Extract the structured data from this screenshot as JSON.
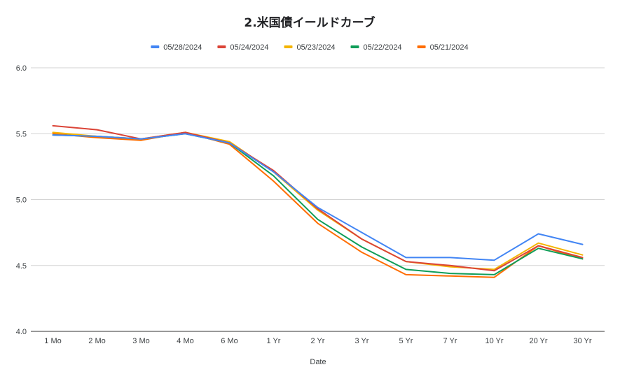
{
  "chart_data": {
    "type": "line",
    "title": "2.米国債イールドカーブ",
    "xlabel": "Date",
    "ylabel": "",
    "ylim": [
      4.0,
      6.0
    ],
    "yticks": [
      "4.0",
      "4.5",
      "5.0",
      "5.5",
      "6.0"
    ],
    "grid": true,
    "legend_position": "top",
    "categories": [
      "1 Mo",
      "2 Mo",
      "3 Mo",
      "4 Mo",
      "6 Mo",
      "1 Yr",
      "2 Yr",
      "3 Yr",
      "5 Yr",
      "7 Yr",
      "10 Yr",
      "20 Yr",
      "30 Yr"
    ],
    "series": [
      {
        "name": "05/28/2024",
        "color": "#4285f4",
        "values": [
          5.49,
          5.48,
          5.46,
          5.5,
          5.43,
          5.21,
          4.94,
          4.75,
          4.56,
          4.56,
          4.54,
          4.74,
          4.66
        ]
      },
      {
        "name": "05/24/2024",
        "color": "#db4437",
        "values": [
          5.56,
          5.53,
          5.46,
          5.51,
          5.43,
          5.22,
          4.93,
          4.7,
          4.53,
          4.5,
          4.46,
          4.65,
          4.56
        ]
      },
      {
        "name": "05/23/2024",
        "color": "#f4b400",
        "values": [
          5.51,
          5.48,
          5.46,
          5.51,
          5.44,
          5.21,
          4.92,
          4.7,
          4.53,
          4.49,
          4.47,
          4.67,
          4.58
        ]
      },
      {
        "name": "05/22/2024",
        "color": "#0f9d58",
        "values": [
          5.49,
          5.48,
          5.46,
          5.5,
          5.43,
          5.18,
          4.85,
          4.64,
          4.47,
          4.44,
          4.43,
          4.63,
          4.55
        ]
      },
      {
        "name": "05/21/2024",
        "color": "#ff6d01",
        "values": [
          5.5,
          5.47,
          5.45,
          5.51,
          5.42,
          5.14,
          4.82,
          4.6,
          4.43,
          4.42,
          4.41,
          4.65,
          4.55
        ]
      }
    ]
  }
}
